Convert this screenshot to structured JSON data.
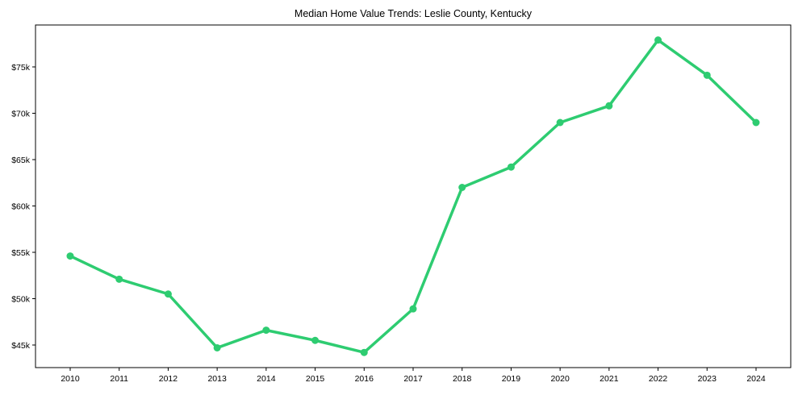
{
  "chart_data": {
    "type": "line",
    "title": "Median Home Value Trends: Leslie County, Kentucky",
    "xlabel": "",
    "ylabel": "",
    "categories": [
      "2010",
      "2011",
      "2012",
      "2013",
      "2014",
      "2015",
      "2016",
      "2017",
      "2018",
      "2019",
      "2020",
      "2021",
      "2022",
      "2023",
      "2024"
    ],
    "series": [
      {
        "name": "Median Home Value",
        "color": "#2ecc71",
        "values": [
          54600,
          52100,
          50500,
          44700,
          46600,
          45500,
          44200,
          48900,
          62000,
          64200,
          69000,
          70800,
          77900,
          74100,
          69000
        ]
      }
    ],
    "yticks": [
      45000,
      50000,
      55000,
      60000,
      65000,
      70000,
      75000
    ],
    "ytick_labels": [
      "$45k",
      "$50k",
      "$55k",
      "$60k",
      "$65k",
      "$70k",
      "$75k"
    ],
    "ylim": [
      42600,
      79600
    ],
    "grid": false,
    "legend": null
  }
}
